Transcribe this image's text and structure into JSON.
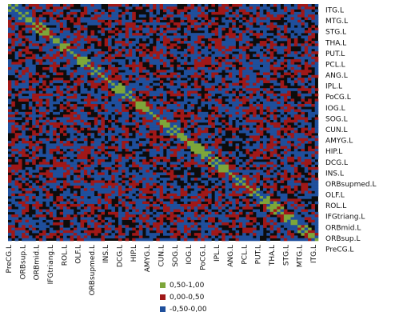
{
  "chart_data": {
    "type": "heatmap",
    "title": "",
    "xlabel": "",
    "ylabel": "",
    "x_tick_labels": [
      "PreCG.L",
      "ORBsup.L",
      "ORBmid.L",
      "IFGtriang.L",
      "ROL.L",
      "OLF.L",
      "ORBsupmed.L",
      "INS.L",
      "DCG.L",
      "HIP.L",
      "AMYG.L",
      "CUN.L",
      "SOG.L",
      "IOG.L",
      "PoCG.L",
      "IPL.L",
      "ANG.L",
      "PCL.L",
      "PUT.L",
      "THA.L",
      "STG.L",
      "MTG.L",
      "ITG.L"
    ],
    "y_tick_labels": [
      "ITG.L",
      "MTG.L",
      "STG.L",
      "THA.L",
      "PUT.L",
      "PCL.L",
      "ANG.L",
      "IPL.L",
      "PoCG.L",
      "IOG.L",
      "SOG.L",
      "CUN.L",
      "AMYG.L",
      "HIP.L",
      "DCG.L",
      "INS.L",
      "ORBsupmed.L",
      "OLF.L",
      "ROL.L",
      "IFGtriang.L",
      "ORBmid.L",
      "ORBsup.L",
      "PreCG.L"
    ],
    "legend": [
      {
        "label": "0,50-1,00",
        "color": "#7da63a"
      },
      {
        "label": "0,00-0,50",
        "color": "#a01818"
      },
      {
        "label": "-0,50-0,00",
        "color": "#1f4f9c"
      }
    ],
    "colors": {
      "background": "#0c0c0c",
      "positive_strong": "#7da63a",
      "positive": "#a01818",
      "negative": "#1f4f9c"
    },
    "grid": false,
    "legend_position": "bottom"
  }
}
